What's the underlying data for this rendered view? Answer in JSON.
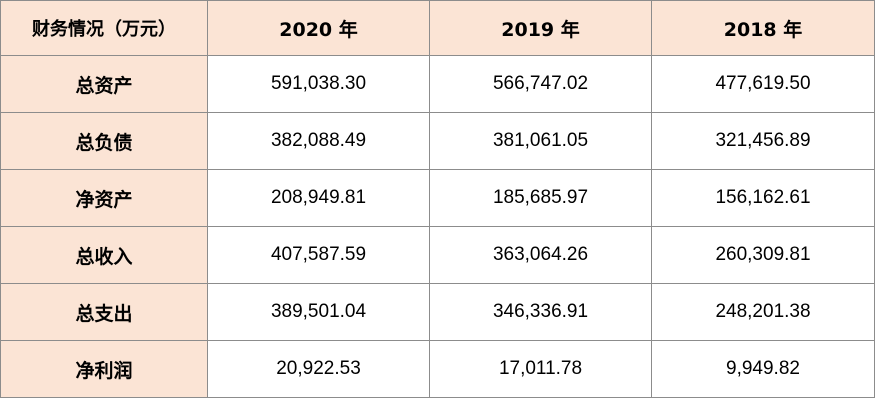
{
  "table": {
    "corner_header": "财务情况（万元）",
    "columns": [
      "2020 年",
      "2019 年",
      "2018 年"
    ],
    "rows": [
      {
        "label": "总资产",
        "values": [
          "591,038.30",
          "566,747.02",
          "477,619.50"
        ]
      },
      {
        "label": "总负债",
        "values": [
          "382,088.49",
          "381,061.05",
          "321,456.89"
        ]
      },
      {
        "label": "净资产",
        "values": [
          "208,949.81",
          "185,685.97",
          "156,162.61"
        ]
      },
      {
        "label": "总收入",
        "values": [
          "407,587.59",
          "363,064.26",
          "260,309.81"
        ]
      },
      {
        "label": "总支出",
        "values": [
          "389,501.04",
          "346,336.91",
          "248,201.38"
        ]
      },
      {
        "label": "净利润",
        "values": [
          "20,922.53",
          "17,011.78",
          "9,949.82"
        ]
      }
    ]
  }
}
